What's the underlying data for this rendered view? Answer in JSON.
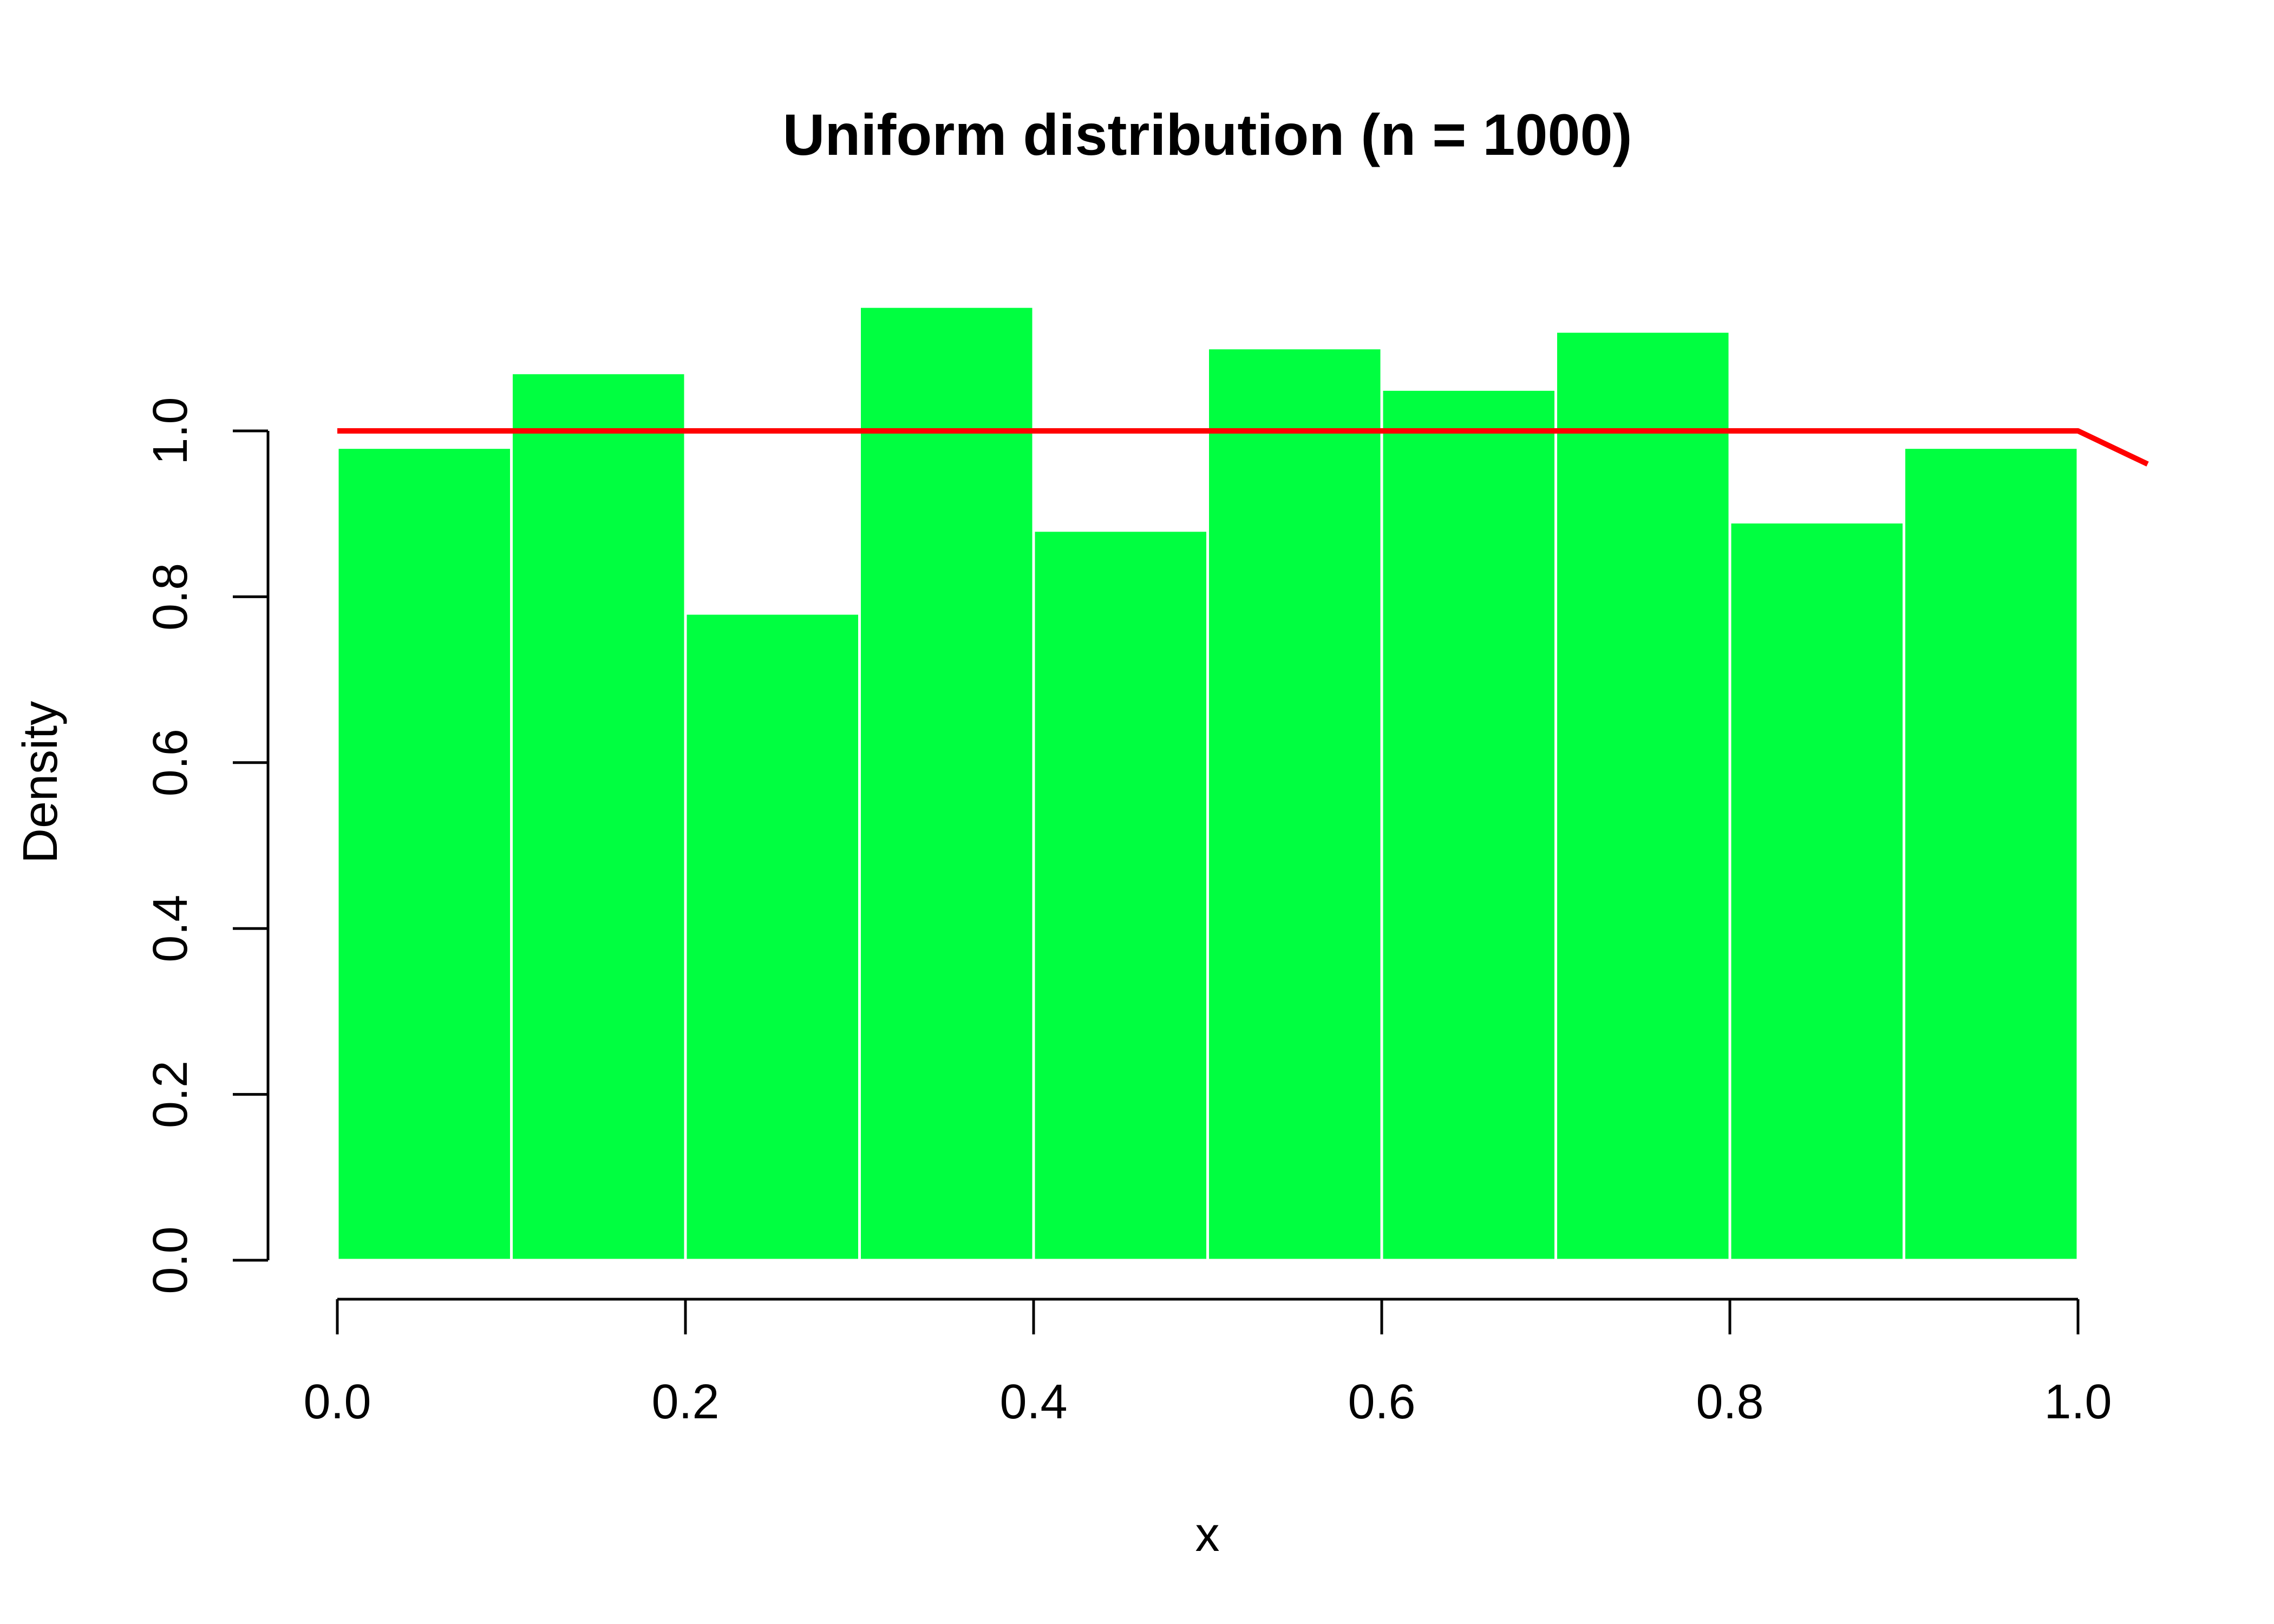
{
  "chart_data": {
    "type": "bar",
    "title": "Uniform distribution (n = 1000)",
    "xlabel": "x",
    "ylabel": "Density",
    "xlim": [
      0.0,
      1.0
    ],
    "ylim": [
      0.0,
      1.0
    ],
    "x_ticks": [
      "0.0",
      "0.2",
      "0.4",
      "0.6",
      "0.8",
      "1.0"
    ],
    "y_ticks": [
      "0.0",
      "0.2",
      "0.4",
      "0.6",
      "0.8",
      "1.0"
    ],
    "bins": [
      {
        "start": 0.0,
        "end": 0.1,
        "density": 0.98
      },
      {
        "start": 0.1,
        "end": 0.2,
        "density": 1.07
      },
      {
        "start": 0.2,
        "end": 0.3,
        "density": 0.78
      },
      {
        "start": 0.3,
        "end": 0.4,
        "density": 1.15
      },
      {
        "start": 0.4,
        "end": 0.5,
        "density": 0.88
      },
      {
        "start": 0.5,
        "end": 0.6,
        "density": 1.1
      },
      {
        "start": 0.6,
        "end": 0.7,
        "density": 1.05
      },
      {
        "start": 0.7,
        "end": 0.8,
        "density": 1.12
      },
      {
        "start": 0.8,
        "end": 0.9,
        "density": 0.89
      },
      {
        "start": 0.9,
        "end": 1.0,
        "density": 0.98
      }
    ],
    "density_line": {
      "x": [
        0.0,
        1.0,
        1.04
      ],
      "y": [
        1.0,
        1.0,
        0.96
      ]
    },
    "bar_color": "#00FF40",
    "bar_border_color": "#FFFFFF",
    "line_color": "#FF0000",
    "grid": false,
    "legend": "none"
  }
}
